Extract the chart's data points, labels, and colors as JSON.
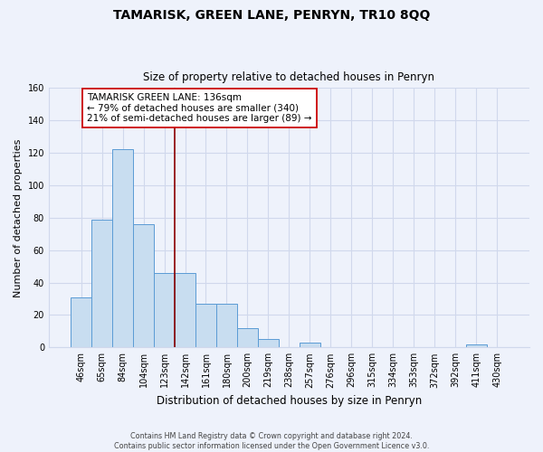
{
  "title": "TAMARISK, GREEN LANE, PENRYN, TR10 8QQ",
  "subtitle": "Size of property relative to detached houses in Penryn",
  "xlabel": "Distribution of detached houses by size in Penryn",
  "ylabel": "Number of detached properties",
  "bar_labels": [
    "46sqm",
    "65sqm",
    "84sqm",
    "104sqm",
    "123sqm",
    "142sqm",
    "161sqm",
    "180sqm",
    "200sqm",
    "219sqm",
    "238sqm",
    "257sqm",
    "276sqm",
    "296sqm",
    "315sqm",
    "334sqm",
    "353sqm",
    "372sqm",
    "392sqm",
    "411sqm",
    "430sqm"
  ],
  "bar_heights": [
    31,
    79,
    122,
    76,
    46,
    46,
    27,
    27,
    12,
    5,
    0,
    3,
    0,
    0,
    0,
    0,
    0,
    0,
    0,
    2,
    0
  ],
  "bar_color": "#c8ddf0",
  "bar_edge_color": "#5b9bd5",
  "vline_x": 4.5,
  "vline_color": "#8b0000",
  "annotation_line1": "TAMARISK GREEN LANE: 136sqm",
  "annotation_line2": "← 79% of detached houses are smaller (340)",
  "annotation_line3": "21% of semi-detached houses are larger (89) →",
  "annotation_box_color": "white",
  "annotation_box_edge": "#cc0000",
  "ylim": [
    0,
    160
  ],
  "yticks": [
    0,
    20,
    40,
    60,
    80,
    100,
    120,
    140,
    160
  ],
  "footer_line1": "Contains HM Land Registry data © Crown copyright and database right 2024.",
  "footer_line2": "Contains public sector information licensed under the Open Government Licence v3.0.",
  "bg_color": "#eef2fb",
  "grid_color": "#d0d8ec",
  "plot_bg": "#eef2fb"
}
